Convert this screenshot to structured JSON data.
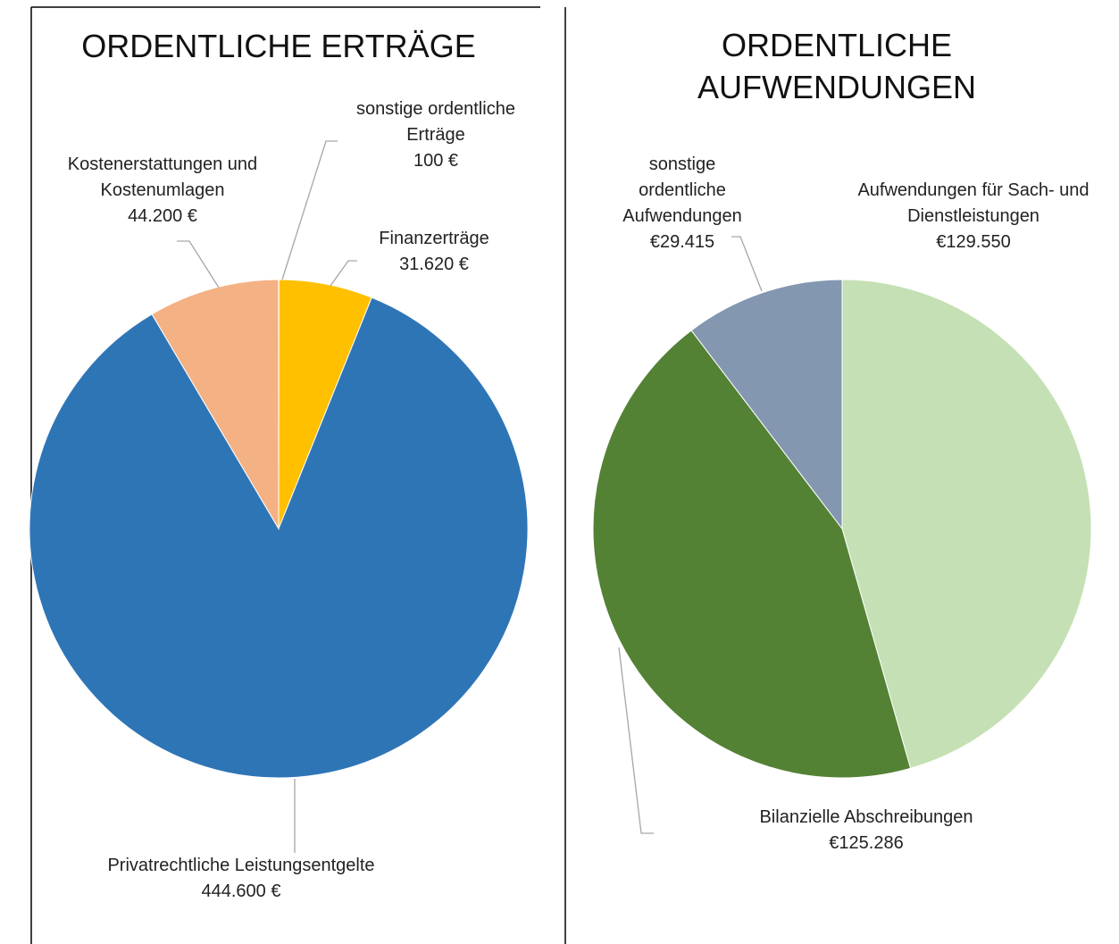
{
  "chart_data": [
    {
      "type": "pie",
      "title": "ORDENTLICHE ERTRÄGE",
      "categories": [
        "sonstige ordentliche Erträge",
        "Finanzerträge",
        "Privatrechtliche Leistungsentgelte",
        "Kostenerstattungen und Kostenumlagen"
      ],
      "values": [
        100,
        31620,
        444600,
        44200
      ],
      "value_labels": [
        "100 €",
        "31.620 €",
        "444.600 €",
        "44.200 €"
      ],
      "colors": [
        "#a5a5a5",
        "#ffc000",
        "#2e75b6",
        "#f4b183"
      ]
    },
    {
      "type": "pie",
      "title": "ORDENTLICHE AUFWENDUNGEN",
      "categories": [
        "Aufwendungen für Sach- und Dienstleistungen",
        "Bilanzielle Abschreibungen",
        "sonstige ordentliche Aufwendungen"
      ],
      "values": [
        129550,
        125286,
        29415
      ],
      "value_labels": [
        "€129.550",
        "€125.286",
        "€29.415"
      ],
      "colors": [
        "#c5e0b4",
        "#548235",
        "#8497b0"
      ]
    }
  ]
}
